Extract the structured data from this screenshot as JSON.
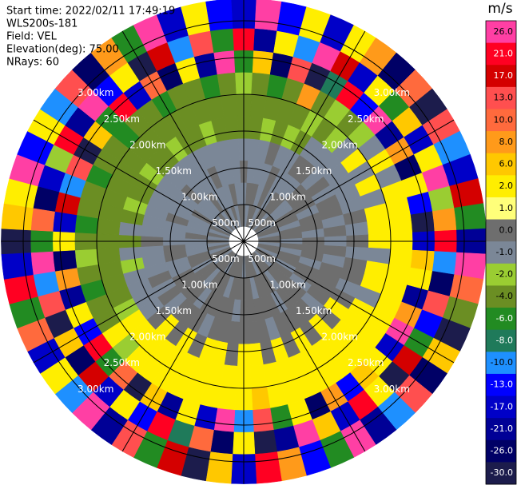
{
  "chart_data": {
    "type": "ppi",
    "annotations": [
      "Start time: 2022/02/11 17:49:19",
      "WLS200s-181",
      "Field: VEL",
      "Elevation(deg): 75.00",
      "NRays: 60"
    ],
    "range_bins": [
      0.2,
      0.5,
      0.8,
      1.1,
      1.4,
      1.7,
      2.0,
      2.3,
      2.6,
      2.9,
      3.3
    ],
    "rings": [
      {
        "value": 0.5,
        "label": "500m"
      },
      {
        "value": 1.0,
        "label": "1.00km"
      },
      {
        "value": 1.5,
        "label": "1.50km"
      },
      {
        "value": 2.0,
        "label": "2.00km"
      },
      {
        "value": 2.5,
        "label": "2.50km"
      },
      {
        "value": 3.0,
        "label": "3.00km"
      }
    ],
    "colorbar": {
      "title": "m/s",
      "ticks": [
        {
          "value": 26,
          "label": "26.0"
        },
        {
          "value": 21,
          "label": "21.0"
        },
        {
          "value": 17,
          "label": "17.0"
        },
        {
          "value": 13,
          "label": "13.0"
        },
        {
          "value": 10,
          "label": "10.0"
        },
        {
          "value": 8,
          "label": "8.0"
        },
        {
          "value": 6,
          "label": "6.0"
        },
        {
          "value": 2,
          "label": "2.0"
        },
        {
          "value": 1,
          "label": "1.0"
        },
        {
          "value": 0,
          "label": "0.0"
        },
        {
          "value": -1,
          "label": "-1.0"
        },
        {
          "value": -2,
          "label": "-2.0"
        },
        {
          "value": -4,
          "label": "-4.0"
        },
        {
          "value": -6,
          "label": "-6.0"
        },
        {
          "value": -8,
          "label": "-8.0"
        },
        {
          "value": -10,
          "label": "-10.0"
        },
        {
          "value": -13,
          "label": "-13.0"
        },
        {
          "value": -17,
          "label": "-17.0"
        },
        {
          "value": -21,
          "label": "-21.0"
        },
        {
          "value": -26,
          "label": "-26.0"
        },
        {
          "value": -30,
          "label": "-30.0"
        }
      ],
      "colors": [
        "#ff3fa4",
        "#ff0022",
        "#d40000",
        "#ff4f4f",
        "#ff6a3d",
        "#ff9a1a",
        "#ffc800",
        "#ffee00",
        "#ffff7a",
        "#6e6e6e",
        "#7b8797",
        "#9acd32",
        "#6b8e23",
        "#228b22",
        "#1f7a5a",
        "#1e90ff",
        "#0000ff",
        "#0000c8",
        "#000096",
        "#000066",
        "#1c1c4c"
      ]
    },
    "values": [
      [
        0.5,
        -0.5,
        0.5,
        -0.5,
        -3,
        -3,
        -1.5,
        -5,
        23,
        -15
      ],
      [
        -0.5,
        0.5,
        -0.5,
        -0.5,
        -3,
        -3,
        -3,
        7,
        -19,
        28
      ],
      [
        0.5,
        0.5,
        -0.5,
        -0.5,
        -1.5,
        -3,
        -5,
        -23,
        3,
        -11
      ],
      [
        0.5,
        -0.5,
        -0.5,
        0.5,
        -3,
        -3,
        -3,
        15,
        -9,
        5
      ],
      [
        -0.5,
        0.5,
        0.5,
        -0.5,
        -1.5,
        -3,
        9,
        -28,
        28,
        -15
      ],
      [
        0.5,
        -0.5,
        -0.5,
        -0.5,
        -3,
        -1.5,
        -3,
        -7,
        19,
        3
      ],
      [
        0.5,
        0.5,
        -0.5,
        0.5,
        -0.5,
        -3,
        -1.5,
        23,
        -15,
        9
      ],
      [
        -0.5,
        0.5,
        -0.5,
        0.5,
        -0.5,
        -1.5,
        -3,
        -11,
        5,
        -23
      ],
      [
        0.5,
        -0.5,
        0.5,
        -0.5,
        -0.5,
        -0.5,
        -1.5,
        28,
        -5,
        11
      ],
      [
        0.5,
        -0.5,
        0.5,
        0.5,
        -0.5,
        3,
        -0.5,
        -19,
        7,
        -28
      ],
      [
        -0.5,
        0.5,
        0.5,
        -0.5,
        -0.5,
        -0.5,
        3,
        9,
        -15,
        15
      ],
      [
        0.5,
        0.5,
        -0.5,
        0.5,
        -0.5,
        3,
        -0.5,
        -23,
        3,
        -9
      ],
      [
        0.5,
        -0.5,
        0.5,
        0.5,
        -0.5,
        -0.5,
        3,
        5,
        28,
        -15
      ],
      [
        -0.5,
        0.5,
        0.5,
        -0.5,
        0.5,
        3,
        5,
        -11,
        -1.5,
        19
      ],
      [
        0.5,
        0.5,
        -0.5,
        0.5,
        -0.5,
        3,
        3,
        -28,
        9,
        -5
      ],
      [
        0.5,
        -0.5,
        0.5,
        -0.5,
        0.5,
        3,
        5,
        -15,
        23,
        -19
      ],
      [
        -0.5,
        0.5,
        0.5,
        0.5,
        -0.5,
        -0.5,
        3,
        7,
        -9,
        28
      ],
      [
        0.5,
        -0.5,
        0.5,
        -0.5,
        0.5,
        3,
        5,
        3,
        -23,
        11
      ],
      [
        0.5,
        0.5,
        -0.5,
        0.5,
        0.5,
        3,
        3,
        -19,
        15,
        -3
      ],
      [
        -0.5,
        0.5,
        0.5,
        0.5,
        -0.5,
        -0.5,
        5,
        9,
        -11,
        -28
      ],
      [
        0.5,
        -0.5,
        0.5,
        0.5,
        0.5,
        3,
        5,
        28,
        -5,
        7
      ],
      [
        0.5,
        0.5,
        -0.5,
        0.5,
        3,
        3,
        3,
        -15,
        19,
        -23
      ],
      [
        -0.5,
        0.5,
        0.5,
        -0.5,
        0.5,
        3,
        5,
        5,
        -28,
        15
      ],
      [
        0.5,
        0.5,
        0.5,
        0.5,
        3,
        3,
        3,
        7,
        3,
        -9
      ],
      [
        0.5,
        -0.5,
        0.5,
        0.5,
        0.5,
        3,
        5,
        -11,
        23,
        -19
      ],
      [
        0.5,
        0.5,
        -0.5,
        0.5,
        3,
        5,
        3,
        9,
        -15,
        28
      ],
      [
        -0.5,
        0.5,
        0.5,
        0.5,
        0.5,
        3,
        3,
        -23,
        7,
        -5
      ],
      [
        0.5,
        0.5,
        0.5,
        -0.5,
        3,
        3,
        5,
        3,
        28,
        -11
      ],
      [
        0.5,
        -0.5,
        0.5,
        0.5,
        0.5,
        5,
        3,
        -5,
        -19,
        9
      ],
      [
        0.5,
        0.5,
        0.5,
        0.5,
        3,
        3,
        7,
        15,
        -28,
        23
      ],
      [
        -0.5,
        0.5,
        0.5,
        0.5,
        3,
        3,
        3,
        -9,
        5,
        -15
      ],
      [
        0.5,
        0.5,
        -0.5,
        0.5,
        0.5,
        5,
        3,
        28,
        -23,
        7
      ],
      [
        0.5,
        0.5,
        0.5,
        0.5,
        3,
        3,
        5,
        -15,
        11,
        -28
      ],
      [
        0.5,
        -0.5,
        0.5,
        0.5,
        3,
        3,
        3,
        5,
        -7,
        19
      ],
      [
        0.5,
        0.5,
        0.5,
        -0.5,
        0.5,
        3,
        5,
        -19,
        23,
        -5
      ],
      [
        -0.5,
        0.5,
        0.5,
        0.5,
        3,
        3,
        3,
        7,
        -11,
        15
      ],
      [
        0.5,
        0.5,
        -0.5,
        0.5,
        0.5,
        3,
        5,
        -28,
        3,
        -19
      ],
      [
        0.5,
        -0.5,
        0.5,
        0.5,
        3,
        3,
        3,
        11,
        -15,
        28
      ],
      [
        0.5,
        0.5,
        0.5,
        -0.5,
        0.5,
        3,
        -1.5,
        -5,
        19,
        -9
      ],
      [
        -0.5,
        0.5,
        0.5,
        0.5,
        -0.5,
        3,
        3,
        23,
        -23,
        5
      ],
      [
        0.5,
        -0.5,
        0.5,
        -0.5,
        -0.5,
        -1.5,
        -3,
        -11,
        7,
        -15
      ],
      [
        0.5,
        0.5,
        -0.5,
        0.5,
        -0.5,
        -3,
        -3,
        3,
        -28,
        11
      ],
      [
        -0.5,
        0.5,
        -0.5,
        -0.5,
        -0.5,
        -3,
        -5,
        -19,
        15,
        -5
      ],
      [
        0.5,
        -0.5,
        0.5,
        -0.5,
        -1.5,
        -3,
        -3,
        9,
        -9,
        23
      ],
      [
        -0.5,
        -0.5,
        0.5,
        -0.5,
        -0.5,
        -3,
        -1.5,
        -23,
        28,
        -15
      ],
      [
        0.5,
        -0.5,
        -0.5,
        0.5,
        -3,
        -3,
        -3,
        5,
        -5,
        -28
      ],
      [
        -0.5,
        0.5,
        -0.5,
        -0.5,
        -0.5,
        -3,
        -5,
        -15,
        11,
        7
      ],
      [
        0.5,
        -0.5,
        -0.5,
        -0.5,
        -3,
        -3,
        -3,
        19,
        -23,
        3
      ],
      [
        -0.5,
        -0.5,
        0.5,
        -0.5,
        -1.5,
        -3,
        -3,
        -9,
        -15,
        28
      ],
      [
        0.5,
        -0.5,
        -0.5,
        -0.5,
        -3,
        -3,
        -5,
        15,
        -1.5,
        -11
      ],
      [
        -0.5,
        0.5,
        -0.5,
        -0.5,
        -3,
        -3,
        -3,
        -28,
        23,
        5
      ],
      [
        0.5,
        -0.5,
        -0.5,
        -0.5,
        -1.5,
        -3,
        -3,
        7,
        -19,
        -9
      ],
      [
        -0.5,
        -0.5,
        0.5,
        -0.5,
        -3,
        -3,
        -5,
        -5,
        28,
        15
      ],
      [
        0.5,
        -0.5,
        -0.5,
        -0.5,
        -3,
        -3,
        -3,
        23,
        -11,
        -23
      ],
      [
        -0.5,
        0.5,
        -0.5,
        -0.5,
        -1.5,
        -3,
        -3,
        -15,
        3,
        9
      ],
      [
        0.5,
        -0.5,
        -0.5,
        -0.5,
        -3,
        -3,
        -5,
        11,
        -28,
        -5
      ],
      [
        -0.5,
        -0.5,
        0.5,
        -0.5,
        -3,
        -3,
        -3,
        -23,
        19,
        28
      ],
      [
        0.5,
        -0.5,
        -0.5,
        -0.5,
        -1.5,
        -3,
        -3,
        5,
        -9,
        -15
      ],
      [
        -0.5,
        0.5,
        -0.5,
        -0.5,
        -3,
        -3,
        -5,
        -19,
        15,
        3
      ],
      [
        0.5,
        -0.5,
        -0.5,
        -0.5,
        -3,
        -3,
        -3,
        28,
        -5,
        -11
      ]
    ]
  }
}
